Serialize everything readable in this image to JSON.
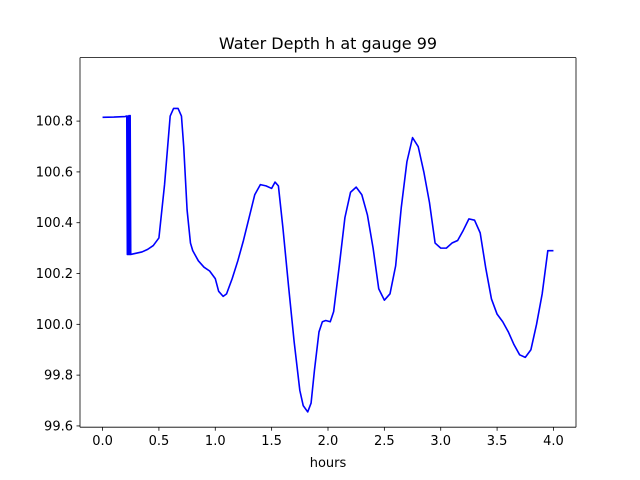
{
  "chart_data": {
    "type": "line",
    "title": "Water Depth h at gauge 99",
    "xlabel": "hours",
    "ylabel": "",
    "xlim": [
      -0.2,
      4.2
    ],
    "ylim": [
      99.595,
      101.05
    ],
    "xticks": [
      0.0,
      0.5,
      1.0,
      1.5,
      2.0,
      2.5,
      3.0,
      3.5,
      4.0
    ],
    "xtick_labels": [
      "0.0",
      "0.5",
      "1.0",
      "1.5",
      "2.0",
      "2.5",
      "3.0",
      "3.5",
      "4.0"
    ],
    "yticks": [
      99.6,
      99.8,
      100.0,
      100.2,
      100.4,
      100.6,
      100.8
    ],
    "ytick_labels": [
      "99.6",
      "99.8",
      "100.0",
      "100.2",
      "100.4",
      "100.6",
      "100.8"
    ],
    "grid": false,
    "legend": "none",
    "series": [
      {
        "color": "#0000ff",
        "x": [
          0.0,
          0.1,
          0.2,
          0.215,
          0.22,
          0.225,
          0.23,
          0.235,
          0.24,
          0.245,
          0.25,
          0.26,
          0.3,
          0.35,
          0.4,
          0.45,
          0.5,
          0.55,
          0.6,
          0.63,
          0.67,
          0.7,
          0.72,
          0.75,
          0.78,
          0.8,
          0.85,
          0.9,
          0.95,
          1.0,
          1.03,
          1.07,
          1.1,
          1.15,
          1.2,
          1.25,
          1.3,
          1.35,
          1.4,
          1.45,
          1.5,
          1.53,
          1.56,
          1.6,
          1.65,
          1.7,
          1.75,
          1.78,
          1.82,
          1.85,
          1.88,
          1.92,
          1.95,
          1.98,
          2.02,
          2.05,
          2.1,
          2.15,
          2.2,
          2.25,
          2.3,
          2.35,
          2.4,
          2.45,
          2.5,
          2.55,
          2.6,
          2.65,
          2.7,
          2.75,
          2.8,
          2.85,
          2.9,
          2.95,
          3.0,
          3.05,
          3.1,
          3.15,
          3.2,
          3.25,
          3.3,
          3.35,
          3.4,
          3.45,
          3.5,
          3.55,
          3.6,
          3.65,
          3.7,
          3.75,
          3.8,
          3.85,
          3.9,
          3.95,
          4.0
        ],
        "y": [
          100.815,
          100.816,
          100.818,
          100.82,
          100.275,
          100.82,
          100.275,
          100.822,
          100.275,
          100.822,
          100.275,
          100.276,
          100.28,
          100.285,
          100.295,
          100.31,
          100.34,
          100.55,
          100.82,
          100.85,
          100.85,
          100.82,
          100.7,
          100.45,
          100.32,
          100.29,
          100.25,
          100.225,
          100.21,
          100.18,
          100.13,
          100.11,
          100.12,
          100.18,
          100.25,
          100.33,
          100.42,
          100.51,
          100.55,
          100.545,
          100.535,
          100.56,
          100.545,
          100.38,
          100.15,
          99.93,
          99.74,
          99.68,
          99.655,
          99.69,
          99.82,
          99.97,
          100.01,
          100.015,
          100.01,
          100.05,
          100.23,
          100.42,
          100.52,
          100.54,
          100.51,
          100.43,
          100.3,
          100.14,
          100.095,
          100.12,
          100.23,
          100.46,
          100.64,
          100.735,
          100.7,
          100.6,
          100.48,
          100.32,
          100.3,
          100.3,
          100.32,
          100.33,
          100.37,
          100.415,
          100.41,
          100.36,
          100.22,
          100.1,
          100.04,
          100.01,
          99.97,
          99.92,
          99.88,
          99.87,
          99.9,
          100.0,
          100.12,
          100.29,
          100.29
        ]
      }
    ]
  }
}
